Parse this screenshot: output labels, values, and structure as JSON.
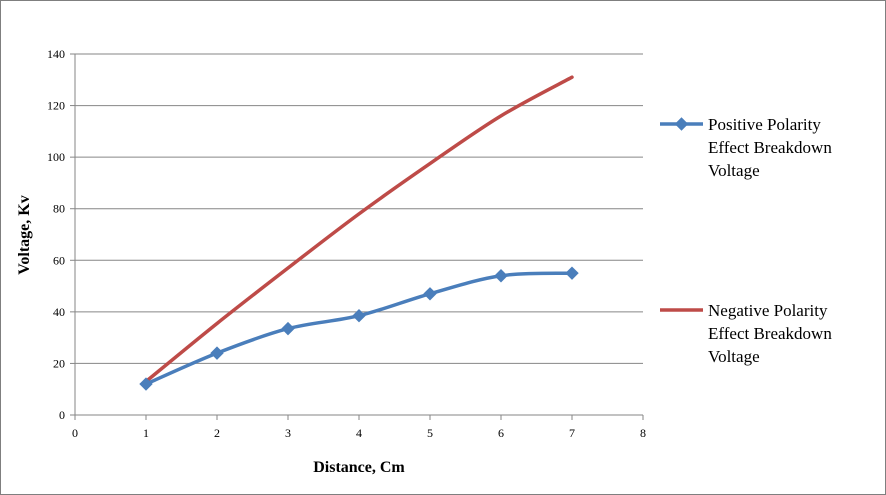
{
  "chart_data": {
    "type": "line",
    "title": "",
    "xlabel": "Distance, Cm",
    "ylabel": "Voltage, Kv",
    "xlim": [
      0,
      8
    ],
    "ylim": [
      0,
      140
    ],
    "x_ticks": [
      0,
      1,
      2,
      3,
      4,
      5,
      6,
      7,
      8
    ],
    "y_ticks": [
      0,
      20,
      40,
      60,
      80,
      100,
      120,
      140
    ],
    "grid": "horizontal",
    "legend_position": "right",
    "series": [
      {
        "name_lines": [
          "Positive  Polarity",
          "Effect Breakdown",
          "Voltage"
        ],
        "color": "#4a7ebb",
        "marker": "diamond",
        "x": [
          1,
          2,
          3,
          4,
          5,
          6,
          7
        ],
        "y": [
          12,
          24,
          33.5,
          38.5,
          47,
          54,
          55
        ]
      },
      {
        "name_lines": [
          "Negative Polarity",
          "Effect Breakdown",
          "Voltage"
        ],
        "color": "#be4b48",
        "marker": "none",
        "x": [
          1,
          2,
          3,
          4,
          5,
          6,
          7
        ],
        "y": [
          13,
          35.5,
          57,
          78,
          97.5,
          116,
          131
        ]
      }
    ]
  }
}
